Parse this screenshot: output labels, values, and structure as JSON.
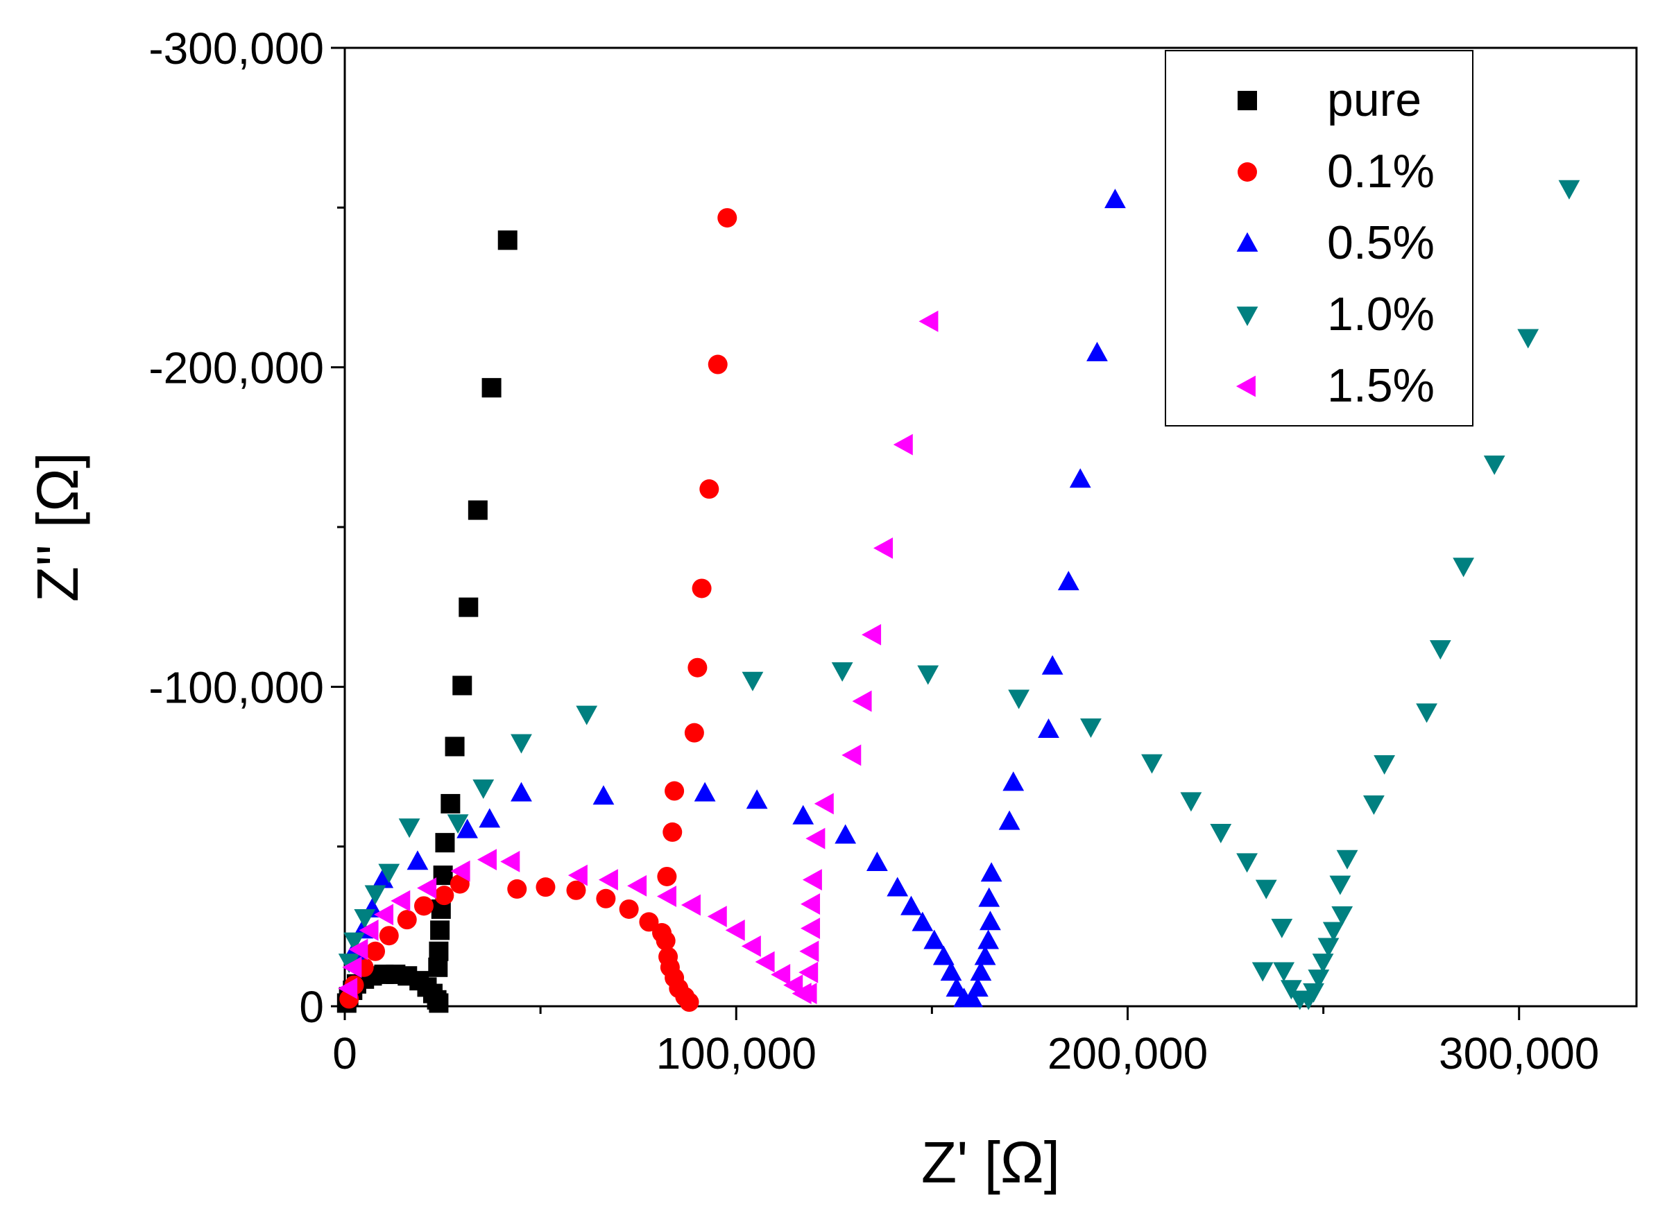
{
  "chart_data": {
    "type": "scatter",
    "xlabel": "Z' [Ω]",
    "ylabel": "Z'' [Ω]",
    "xlim": [
      0,
      330000
    ],
    "ylim": [
      0,
      -300000
    ],
    "xticks": [
      0,
      {
        "value": 100000,
        "label": "100,000"
      },
      {
        "value": 200000,
        "label": "200,000"
      },
      {
        "value": 300000,
        "label": "300,000"
      }
    ],
    "yticks": [
      0,
      {
        "value": -100000,
        "label": "-100,000"
      },
      {
        "value": -200000,
        "label": "-200,000"
      },
      {
        "value": -300000,
        "label": "-300,000"
      }
    ],
    "xminorticks": [
      50000,
      150000,
      250000
    ],
    "yminorticks": [
      -50000,
      -150000,
      -250000
    ],
    "legend": "upper right",
    "series": [
      {
        "name": "pure",
        "color": "#000000",
        "marker": "square",
        "x": [
          500,
          1000,
          2000,
          3000,
          5000,
          7000,
          10000,
          13000,
          16000,
          19000,
          21000,
          22500,
          23500,
          24000,
          23800,
          24000,
          24300,
          24600,
          25100,
          25600,
          27000,
          28100,
          30000,
          31600,
          34000,
          37500,
          41600
        ],
        "values": [
          -1000,
          -3000,
          -5000,
          -7000,
          -8500,
          -9500,
          -10000,
          -10000,
          -9500,
          -8000,
          -6000,
          -4000,
          -2000,
          -1000,
          -12200,
          -17200,
          -23800,
          -30400,
          -41000,
          -51200,
          -63400,
          -81300,
          -100400,
          -124900,
          -155300,
          -193600,
          -239800
        ]
      },
      {
        "name": "0.1%",
        "color": "#ff0000",
        "marker": "circle",
        "x": [
          1100,
          2400,
          4900,
          7800,
          11300,
          15900,
          20200,
          25400,
          29400,
          44000,
          51300,
          59100,
          66700,
          72600,
          77700,
          81000,
          82000,
          82600,
          83100,
          84200,
          85300,
          86900,
          88000,
          82300,
          83700,
          84200,
          89300,
          90100,
          91200,
          93100,
          95300,
          97700
        ],
        "values": [
          -2300,
          -6600,
          -12200,
          -17200,
          -22100,
          -27100,
          -31400,
          -34700,
          -38300,
          -36700,
          -37300,
          -36300,
          -33700,
          -30400,
          -26400,
          -23000,
          -20500,
          -15500,
          -12200,
          -8900,
          -5600,
          -3000,
          -1300,
          -40600,
          -54500,
          -67400,
          -85600,
          -106000,
          -130800,
          -161900,
          -200900,
          -246800
        ]
      },
      {
        "name": "0.5%",
        "color": "#0000ff",
        "marker": "triangle-up",
        "x": [
          2400,
          4600,
          7000,
          9700,
          18600,
          31300,
          37000,
          45100,
          66100,
          92000,
          105300,
          117100,
          127900,
          136000,
          141200,
          144700,
          147600,
          150600,
          153000,
          154900,
          156300,
          158200,
          160300,
          161700,
          162500,
          163600,
          164400,
          164900,
          164600,
          165200,
          169800,
          170800,
          179800,
          180800,
          184900,
          187900,
          192200,
          196800
        ],
        "values": [
          -17200,
          -23800,
          -30400,
          -39600,
          -45300,
          -55200,
          -58500,
          -66700,
          -65700,
          -66700,
          -64400,
          -59500,
          -53500,
          -44900,
          -37000,
          -31100,
          -26100,
          -20500,
          -15500,
          -10600,
          -5600,
          -2300,
          -2300,
          -5600,
          -10600,
          -15500,
          -20500,
          -26400,
          -33700,
          -41600,
          -57800,
          -70000,
          -86600,
          -106400,
          -132800,
          -164900,
          -204500,
          -252400
        ]
      },
      {
        "name": "1.0%",
        "color": "#008080",
        "marker": "triangle-down",
        "x": [
          1100,
          2400,
          5100,
          7800,
          11300,
          16500,
          28900,
          35400,
          45100,
          61800,
          104200,
          127100,
          149000,
          172200,
          190600,
          206200,
          216200,
          223800,
          230500,
          235400,
          239400,
          234500,
          239900,
          241800,
          244000,
          246200,
          247500,
          248800,
          249900,
          251300,
          252600,
          254800,
          254300,
          256100,
          262900,
          265600,
          276400,
          279900,
          285800,
          293700,
          302300,
          312800
        ],
        "values": [
          -13900,
          -20500,
          -27800,
          -35300,
          -42000,
          -56200,
          -57500,
          -68400,
          -82600,
          -91500,
          -102100,
          -105100,
          -104100,
          -96500,
          -87500,
          -76300,
          -64400,
          -54500,
          -45300,
          -37000,
          -24800,
          -11200,
          -11200,
          -5600,
          -2300,
          -2300,
          -4600,
          -8900,
          -13900,
          -18800,
          -23800,
          -28700,
          -38300,
          -46300,
          -63400,
          -76000,
          -92200,
          -112000,
          -137800,
          -169800,
          -209400,
          -256000
        ]
      },
      {
        "name": "1.5%",
        "color": "#ff00ff",
        "marker": "triangle-left",
        "x": [
          1100,
          2200,
          3800,
          6500,
          10300,
          14600,
          21300,
          29900,
          36700,
          42600,
          59900,
          67700,
          75000,
          82600,
          88800,
          95500,
          100100,
          104200,
          107700,
          111700,
          114900,
          117100,
          118500,
          118800,
          119000,
          119300,
          119300,
          119800,
          120600,
          122800,
          129800,
          132500,
          134900,
          137900,
          143000,
          149500
        ],
        "values": [
          -5600,
          -12200,
          -17800,
          -23800,
          -28700,
          -33000,
          -37000,
          -42300,
          -45900,
          -45300,
          -41000,
          -39600,
          -37700,
          -34400,
          -31700,
          -28100,
          -23800,
          -18800,
          -13900,
          -9900,
          -6600,
          -4000,
          -4000,
          -10600,
          -17200,
          -24400,
          -32000,
          -39600,
          -52500,
          -63400,
          -78600,
          -95500,
          -116300,
          -143400,
          -175800,
          -214400
        ]
      }
    ]
  }
}
